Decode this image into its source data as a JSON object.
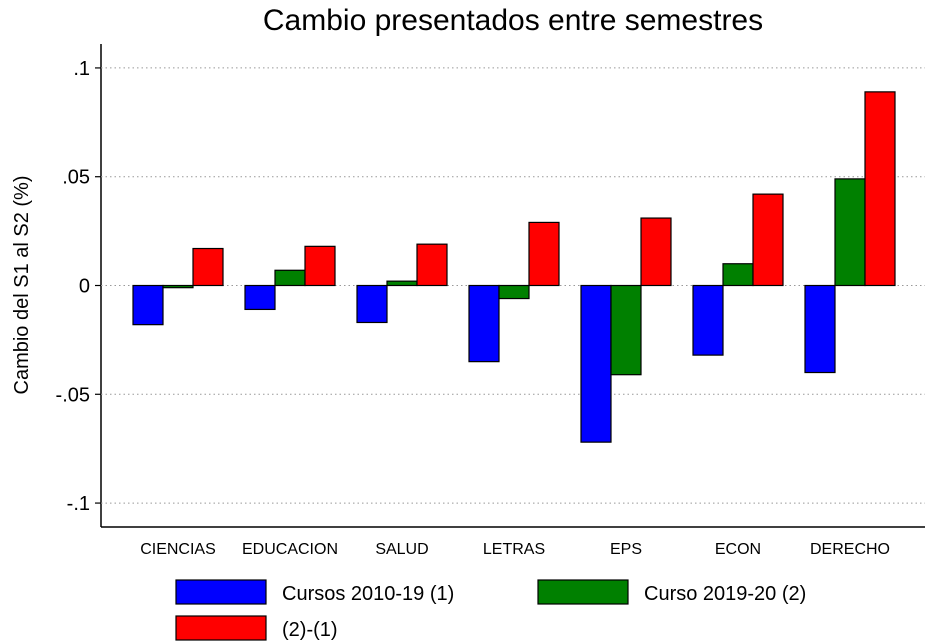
{
  "chart_data": {
    "type": "bar",
    "title": "Cambio presentados entre semestres",
    "y_label": "Cambio del S1 al S2 (%)",
    "categories": [
      "CIENCIAS",
      "EDUCACION",
      "SALUD",
      "LETRAS",
      "EPS",
      "ECON",
      "DERECHO"
    ],
    "series": [
      {
        "name": "Cursos 2010-19 (1)",
        "color": "#0000ff",
        "values": [
          -0.018,
          -0.011,
          -0.017,
          -0.035,
          -0.072,
          -0.032,
          -0.04
        ]
      },
      {
        "name": "Curso 2019-20 (2)",
        "color": "#008000",
        "values": [
          -0.001,
          0.007,
          0.002,
          -0.006,
          -0.041,
          0.01,
          0.049
        ]
      },
      {
        "name": "(2)-(1)",
        "color": "#ff0000",
        "values": [
          0.017,
          0.018,
          0.019,
          0.029,
          0.031,
          0.042,
          0.089
        ]
      }
    ],
    "ylim": [
      -0.111,
      0.111
    ],
    "yticks": [
      {
        "value": -0.1,
        "label": "-.1"
      },
      {
        "value": -0.05,
        "label": "-.05"
      },
      0,
      {
        "value": 0.05,
        "label": ".05"
      },
      {
        "value": 0.1,
        "label": ".1"
      }
    ],
    "grid": true
  }
}
